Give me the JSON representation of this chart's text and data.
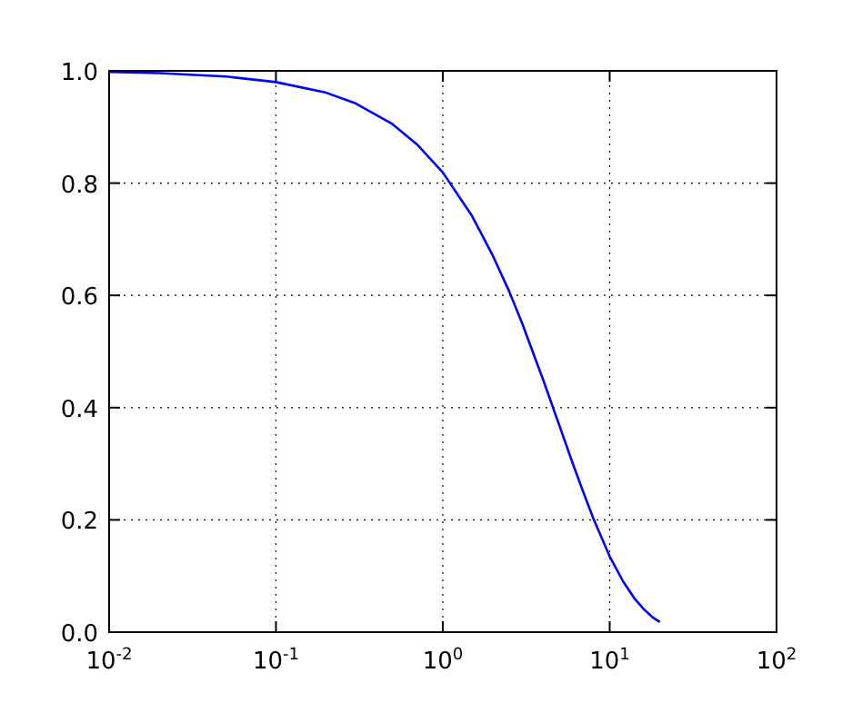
{
  "chart_data": {
    "type": "line",
    "x": [
      0.01,
      0.02,
      0.05,
      0.1,
      0.2,
      0.3,
      0.5,
      0.7,
      1,
      1.5,
      2,
      2.5,
      3,
      4,
      5,
      6,
      7,
      8,
      10,
      12,
      14,
      16,
      18,
      20
    ],
    "series": [
      {
        "color": "#0000ff",
        "values": [
          0.998,
          0.996,
          0.99,
          0.98,
          0.961,
          0.942,
          0.905,
          0.869,
          0.819,
          0.741,
          0.67,
          0.607,
          0.549,
          0.449,
          0.368,
          0.301,
          0.247,
          0.202,
          0.135,
          0.091,
          0.061,
          0.041,
          0.027,
          0.018
        ]
      }
    ],
    "log": "x",
    "xlim": [
      0.01,
      100
    ],
    "ylim": [
      0,
      1
    ],
    "xticks": [
      {
        "value": 0.01,
        "label": "10$^{-2}$"
      },
      {
        "value": 0.1,
        "label": "10$^{-1}$"
      },
      {
        "value": 1,
        "label": "10$^{0}$"
      },
      {
        "value": 10,
        "label": "10$^{1}$"
      },
      {
        "value": 100,
        "label": "10$^{2}$"
      }
    ],
    "yticks": [
      {
        "value": 0,
        "label": "0.0"
      },
      {
        "value": 0.2,
        "label": "0.2"
      },
      {
        "value": 0.4,
        "label": "0.4"
      },
      {
        "value": 0.6,
        "label": "0.6"
      },
      {
        "value": 0.8,
        "label": "0.8"
      },
      {
        "value": 1,
        "label": "1.0"
      }
    ],
    "grid": true,
    "line_style": "solid",
    "marker": "none"
  }
}
